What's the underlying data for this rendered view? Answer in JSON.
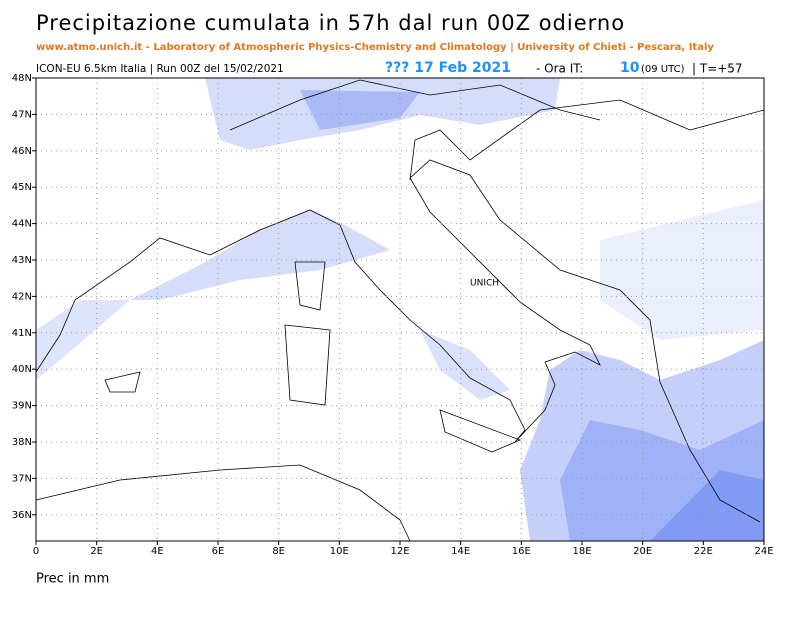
{
  "header": {
    "title": "Precipitazione cumulata in 57h dal run 00Z odierno",
    "subtitle": "www.atmo.unich.it - Laboratory of Atmospheric Physics-Chemistry and Climatology | University of Chieti - Pescara, Italy",
    "model": "ICON-EU 6.5km Italia | Run 00Z del 15/02/2021",
    "date": "??? 17 Feb 2021",
    "hour_label": "- Ora IT:",
    "hour": "10",
    "utc": "(09 UTC)",
    "step": "| T=+57"
  },
  "map": {
    "lon_range": [
      0,
      24
    ],
    "lat_range": [
      35.28,
      48
    ],
    "lon_ticks": [
      {
        "value": 0,
        "label": "0"
      },
      {
        "value": 2,
        "label": "2E"
      },
      {
        "value": 4,
        "label": "4E"
      },
      {
        "value": 6,
        "label": "6E"
      },
      {
        "value": 8,
        "label": "8E"
      },
      {
        "value": 10,
        "label": "10E"
      },
      {
        "value": 12,
        "label": "12E"
      },
      {
        "value": 14,
        "label": "14E"
      },
      {
        "value": 16,
        "label": "16E"
      },
      {
        "value": 18,
        "label": "18E"
      },
      {
        "value": 20,
        "label": "20E"
      },
      {
        "value": 22,
        "label": "22E"
      },
      {
        "value": 24,
        "label": "24E"
      }
    ],
    "lat_ticks": [
      {
        "value": 36,
        "label": "36N"
      },
      {
        "value": 37,
        "label": "37N"
      },
      {
        "value": 38,
        "label": "38N"
      },
      {
        "value": 39,
        "label": "39N"
      },
      {
        "value": 40,
        "label": "40N"
      },
      {
        "value": 41,
        "label": "41N"
      },
      {
        "value": 42,
        "label": "42N"
      },
      {
        "value": 43,
        "label": "43N"
      },
      {
        "value": 44,
        "label": "44N"
      },
      {
        "value": 45,
        "label": "45N"
      },
      {
        "value": 46,
        "label": "46N"
      },
      {
        "value": 47,
        "label": "47N"
      },
      {
        "value": 48,
        "label": "48N"
      }
    ],
    "station": "UNICH"
  },
  "footer": "Prec in mm"
}
